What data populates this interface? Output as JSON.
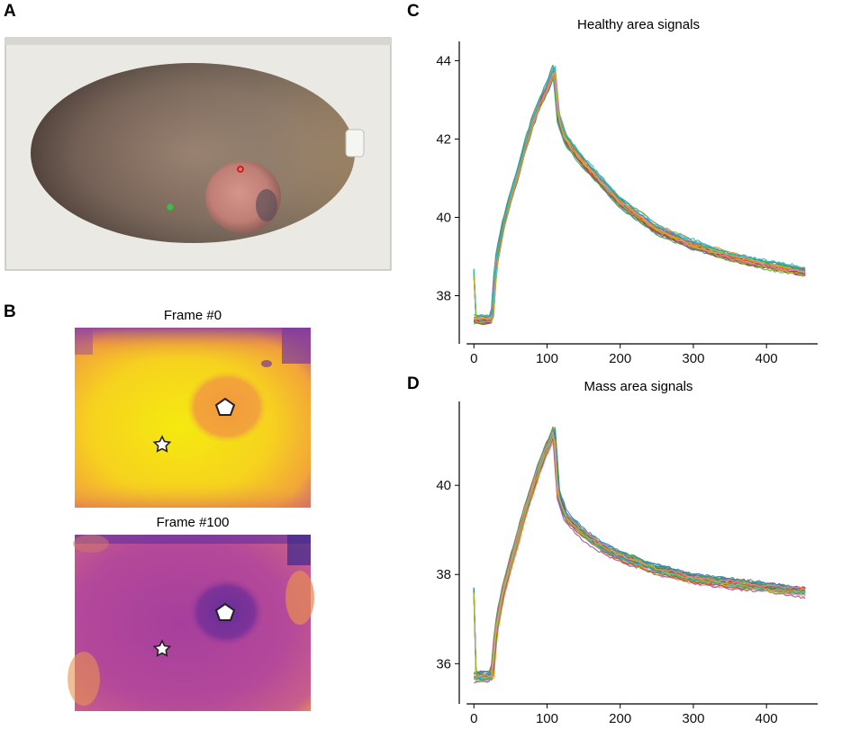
{
  "panels": {
    "a": "A",
    "b": "B",
    "c": "C",
    "d": "D"
  },
  "frames": {
    "frame0_title": "Frame #0",
    "frame100_title": "Frame #100"
  },
  "colors": {
    "series": [
      "#e41a1c",
      "#377eb8",
      "#4daf4a",
      "#984ea3",
      "#ff7f00",
      "#1f9e89",
      "#a65628",
      "#f781bf",
      "#17becf",
      "#bcbd22"
    ],
    "hot_yellow": "#f5e600",
    "hot_orange": "#f39a3b",
    "cool_purple": "#9a3fa0"
  },
  "chart_data": [
    {
      "type": "line",
      "title": "Healthy area signals",
      "xlabel": "",
      "ylabel": "",
      "xlim": [
        -20,
        470
      ],
      "ylim": [
        37.0,
        44.4
      ],
      "xticks": [
        0,
        100,
        200,
        300,
        400
      ],
      "yticks": [
        38,
        40,
        42,
        44
      ],
      "n_series": 30,
      "series_profile": {
        "x": [
          0,
          25,
          30,
          40,
          50,
          60,
          70,
          80,
          90,
          100,
          110,
          115,
          125,
          150,
          175,
          200,
          250,
          300,
          350,
          400,
          455
        ],
        "y": [
          37.4,
          37.4,
          38.8,
          39.8,
          40.5,
          41.1,
          41.8,
          42.4,
          42.9,
          43.3,
          43.8,
          42.6,
          42.0,
          41.4,
          40.9,
          40.4,
          39.7,
          39.3,
          39.0,
          38.8,
          38.6
        ]
      }
    },
    {
      "type": "line",
      "title": "Mass area signals",
      "xlabel": "",
      "ylabel": "",
      "xlim": [
        -20,
        470
      ],
      "ylim": [
        35.3,
        41.8
      ],
      "xticks": [
        0,
        100,
        200,
        300,
        400
      ],
      "yticks": [
        36,
        38,
        40
      ],
      "n_series": 30,
      "series_profile": {
        "x": [
          0,
          25,
          30,
          40,
          50,
          60,
          70,
          80,
          90,
          100,
          110,
          115,
          125,
          150,
          175,
          200,
          250,
          300,
          350,
          400,
          455
        ],
        "y": [
          35.7,
          35.7,
          36.7,
          37.6,
          38.2,
          38.8,
          39.4,
          39.9,
          40.4,
          40.8,
          41.2,
          39.8,
          39.3,
          38.9,
          38.6,
          38.4,
          38.1,
          37.9,
          37.8,
          37.7,
          37.6
        ]
      }
    }
  ]
}
